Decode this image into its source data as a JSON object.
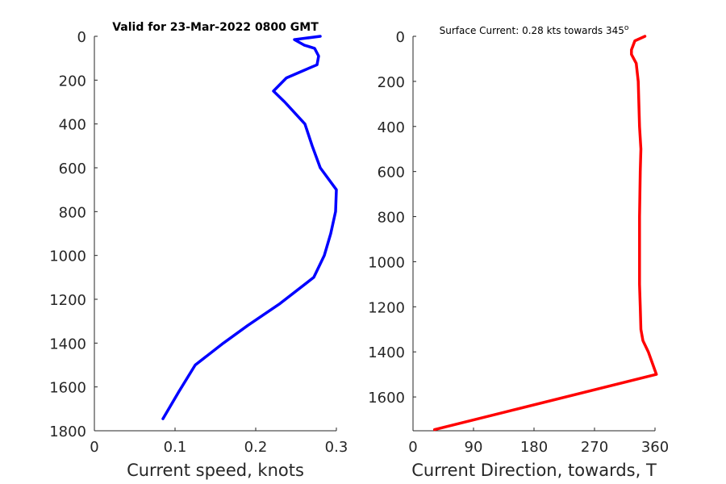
{
  "chart_data": [
    {
      "type": "line",
      "title": "Valid for 23-Mar-2022 0800 GMT",
      "xlabel": "Current speed, knots",
      "ylabel": "",
      "xlim": [
        0,
        0.3
      ],
      "ylim": [
        0,
        1800
      ],
      "y_reversed": true,
      "xticks": [
        "0",
        "0.1",
        "0.2",
        "0.3"
      ],
      "yticks": [
        "0",
        "200",
        "400",
        "600",
        "800",
        "1000",
        "1200",
        "1400",
        "1600",
        "1800"
      ],
      "grid": false,
      "color": "#0000ff",
      "series": [
        {
          "name": "",
          "x": [
            0.28,
            0.248,
            0.26,
            0.273,
            0.278,
            0.276,
            0.26,
            0.238,
            0.222,
            0.236,
            0.261,
            0.27,
            0.28,
            0.3,
            0.299,
            0.293,
            0.285,
            0.272,
            0.23,
            0.19,
            0.16,
            0.125,
            0.105,
            0.085
          ],
          "y": [
            0,
            15,
            40,
            55,
            90,
            130,
            155,
            190,
            250,
            300,
            400,
            500,
            600,
            700,
            800,
            900,
            1000,
            1100,
            1220,
            1320,
            1400,
            1500,
            1620,
            1745
          ]
        }
      ]
    },
    {
      "type": "line",
      "title": "Surface Current: 0.28 kts towards 345",
      "title_superscript": "o",
      "xlabel": "Current Direction, towards, T",
      "ylabel": "",
      "xlim": [
        0,
        360
      ],
      "ylim": [
        0,
        1750
      ],
      "y_reversed": true,
      "xticks": [
        "0",
        "90",
        "180",
        "270",
        "360"
      ],
      "yticks": [
        "0",
        "200",
        "400",
        "600",
        "800",
        "1000",
        "1200",
        "1400",
        "1600"
      ],
      "grid": false,
      "color": "#ff0000",
      "series": [
        {
          "name": "",
          "x": [
            345,
            330,
            325,
            325,
            332,
            335,
            337,
            339,
            338,
            337,
            337,
            337,
            337,
            338,
            339,
            342,
            350,
            362,
            32
          ],
          "y": [
            0,
            20,
            60,
            80,
            120,
            200,
            400,
            500,
            600,
            800,
            900,
            1000,
            1100,
            1200,
            1300,
            1350,
            1400,
            1500,
            1745
          ]
        }
      ]
    }
  ]
}
